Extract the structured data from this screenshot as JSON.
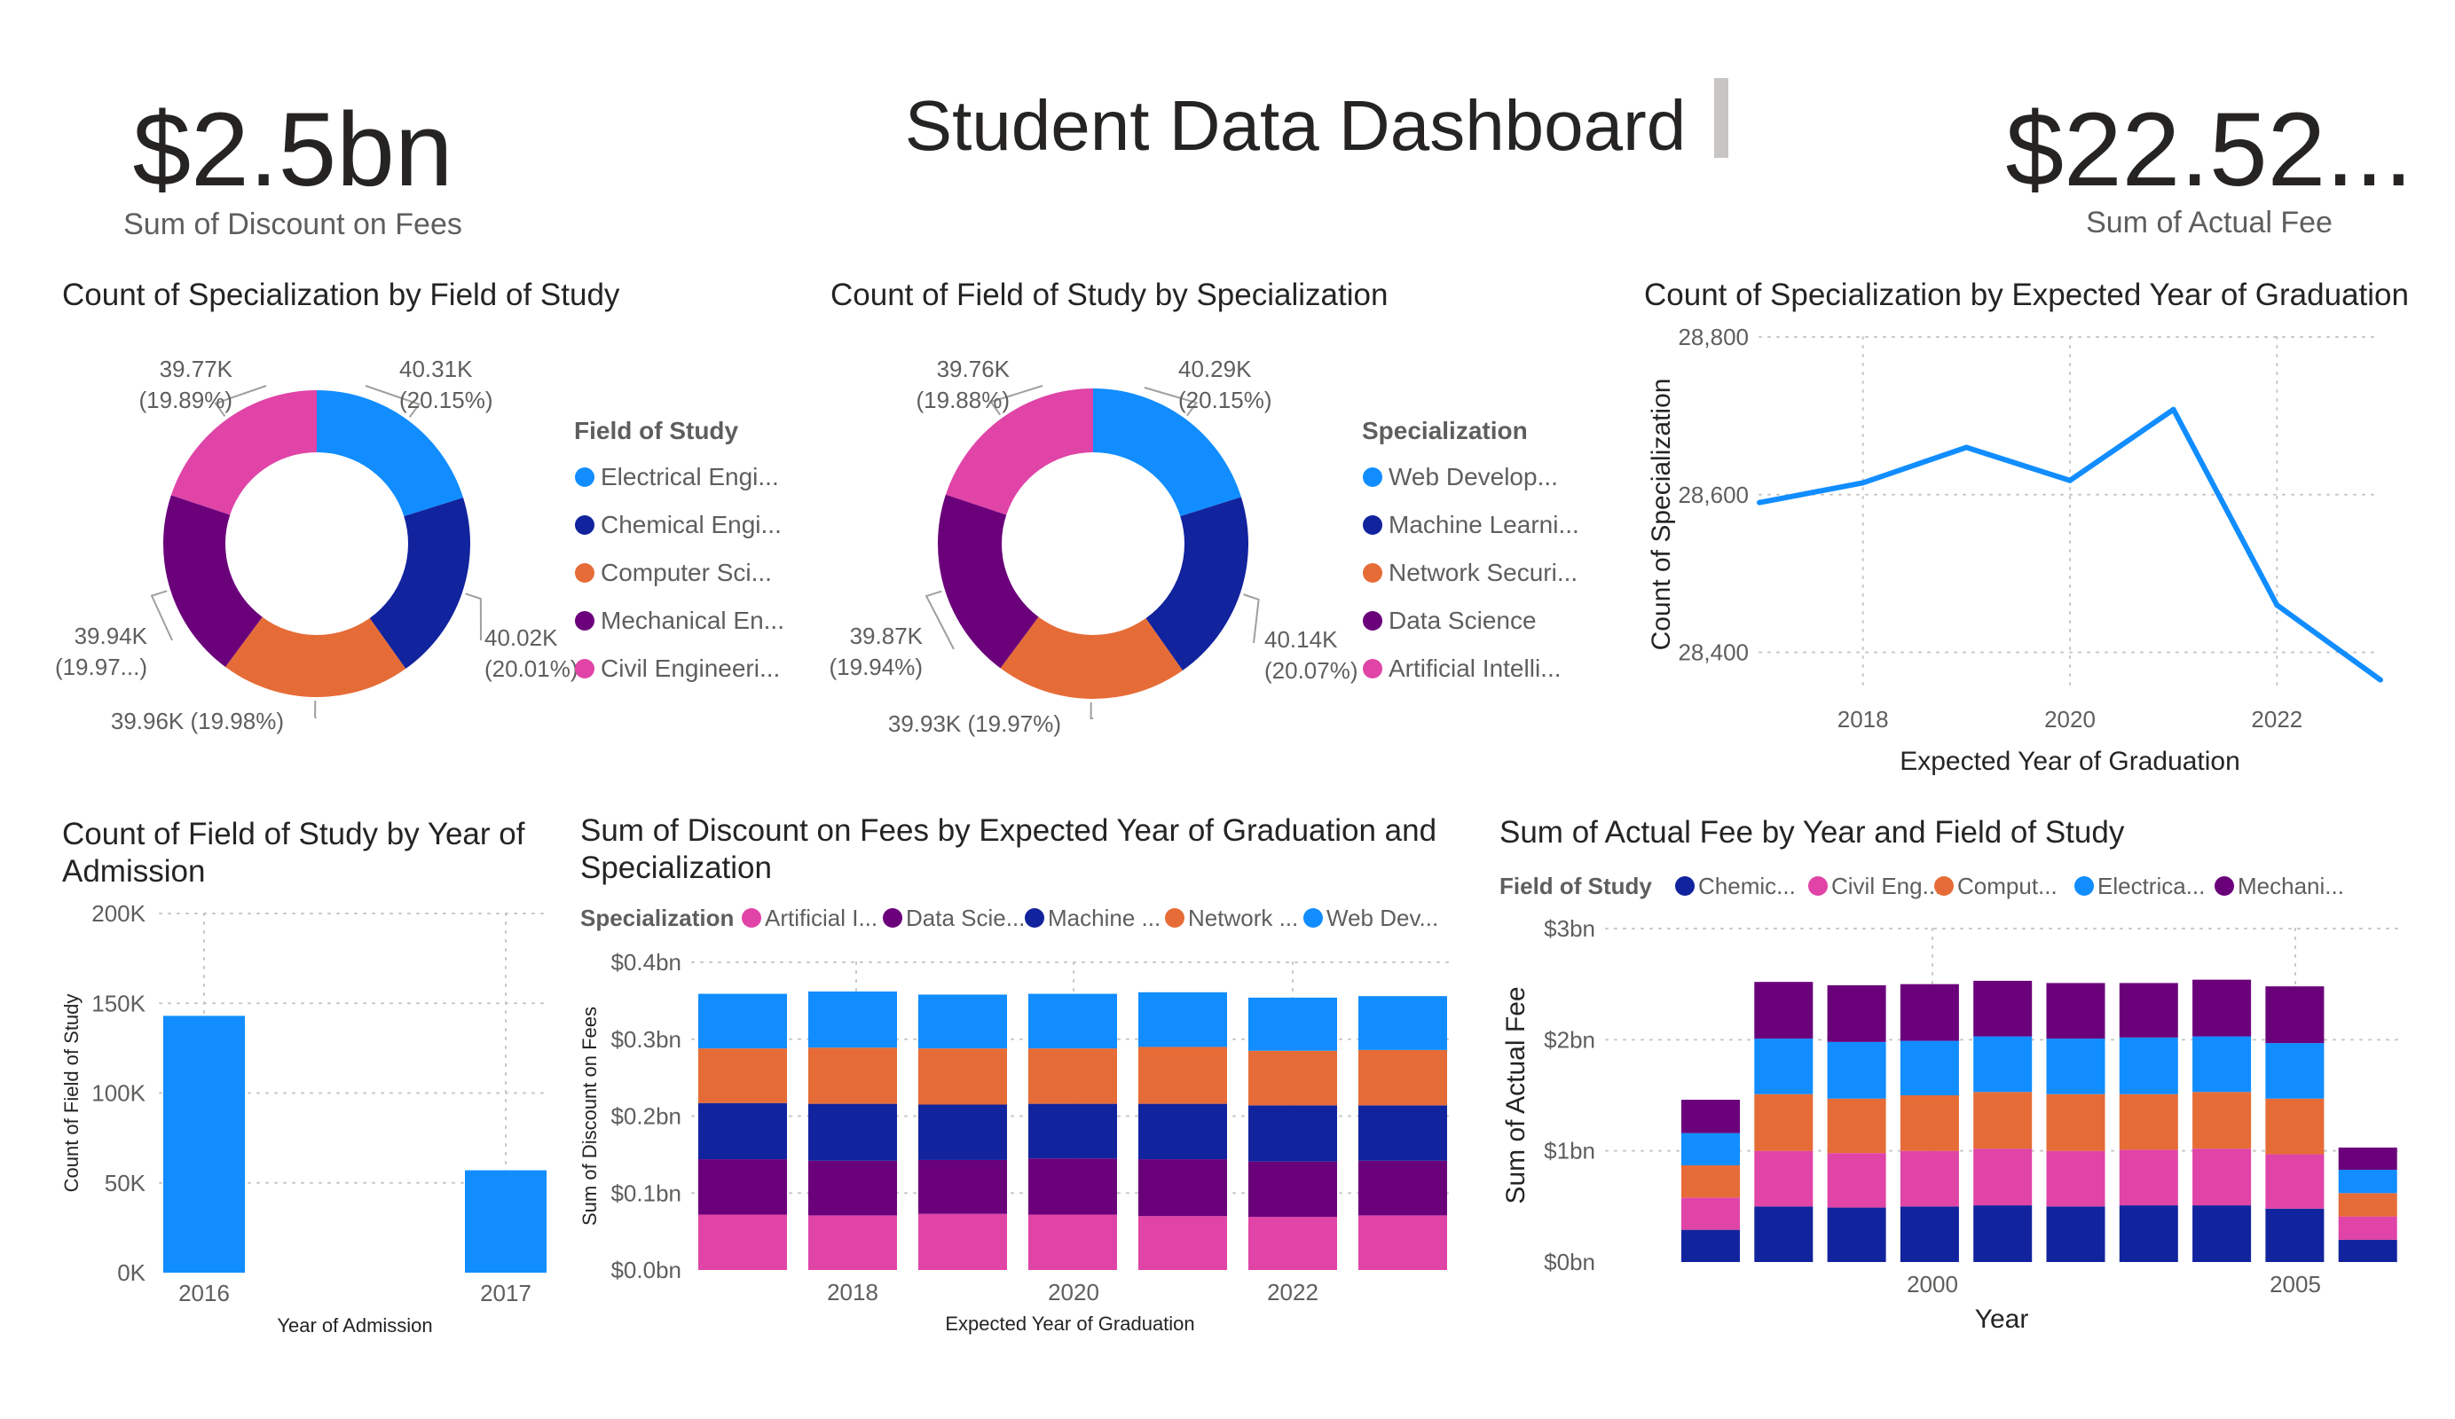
{
  "dashboard": {
    "title": "Student Data Dashboard",
    "kpi_left": {
      "value": "$2.5bn",
      "label": "Sum of Discount on Fees"
    },
    "kpi_right": {
      "value": "$22.52...",
      "label": "Sum of Actual Fee"
    }
  },
  "colors": {
    "blue_light": "#118DFF",
    "navy": "#12239E",
    "orange": "#E66C37",
    "purple": "#6B007B",
    "pink": "#E044A7",
    "text_dark": "#252423",
    "text_mid": "#605E5C",
    "grid": "#C8C6C4"
  },
  "charts": {
    "donut1": {
      "title": "Count of Specialization by Field of Study",
      "legend_title": "Field of Study",
      "legend": [
        "Electrical Engi...",
        "Chemical Engi...",
        "Computer Sci...",
        "Mechanical En...",
        "Civil Engineeri..."
      ],
      "labels": [
        {
          "value": "40.31K",
          "pct": "(20.15%)"
        },
        {
          "value": "40.02K",
          "pct": "(20.01%)"
        },
        {
          "value": "39.96K (19.98%)",
          "pct": ""
        },
        {
          "value": "39.94K",
          "pct": "(19.97...)"
        },
        {
          "value": "39.77K",
          "pct": "(19.89%)"
        }
      ]
    },
    "donut2": {
      "title": "Count of Field of Study by Specialization",
      "legend_title": "Specialization",
      "legend": [
        "Web Develop...",
        "Machine Learni...",
        "Network Securi...",
        "Data Science",
        "Artificial Intelli..."
      ],
      "labels": [
        {
          "value": "40.29K",
          "pct": "(20.15%)"
        },
        {
          "value": "40.14K",
          "pct": "(20.07%)"
        },
        {
          "value": "39.93K (19.97%)",
          "pct": ""
        },
        {
          "value": "39.87K",
          "pct": "(19.94%)"
        },
        {
          "value": "39.76K",
          "pct": "(19.88%)"
        }
      ]
    },
    "line": {
      "title": "Count of Specialization by Expected Year of Graduation",
      "xlabel": "Expected Year of Graduation",
      "ylabel": "Count of Specialization",
      "yticks": [
        "28,800",
        "28,600",
        "28,400"
      ],
      "xticks": [
        "2018",
        "2020",
        "2022"
      ]
    },
    "bar": {
      "title": "Count of Field of Study by Year of Admission",
      "xlabel": "Year of Admission",
      "ylabel": "Count of Field of Study",
      "yticks": [
        "200K",
        "150K",
        "100K",
        "50K",
        "0K"
      ],
      "xticks": [
        "2016",
        "2017"
      ]
    },
    "stack1": {
      "title": "Sum of Discount on Fees by Expected Year of Graduation and Specialization",
      "legend_title": "Specialization",
      "legend": [
        "Artificial I...",
        "Data Scie...",
        "Machine ...",
        "Network ...",
        "Web Dev..."
      ],
      "xlabel": "Expected Year of Graduation",
      "ylabel": "Sum of Discount on Fees",
      "yticks": [
        "$0.4bn",
        "$0.3bn",
        "$0.2bn",
        "$0.1bn",
        "$0.0bn"
      ],
      "xticks": [
        "2018",
        "2020",
        "2022"
      ]
    },
    "stack2": {
      "title": "Sum of Actual Fee by Year and Field of Study",
      "legend_title": "Field of Study",
      "legend": [
        "Chemic...",
        "Civil Eng...",
        "Comput...",
        "Electrica...",
        "Mechani..."
      ],
      "xlabel": "Year",
      "ylabel": "Sum of Actual Fee",
      "yticks": [
        "$3bn",
        "$2bn",
        "$1bn",
        "$0bn"
      ],
      "xticks": [
        "2000",
        "2005"
      ]
    }
  },
  "chart_data": [
    {
      "type": "pie",
      "title": "Count of Specialization by Field of Study",
      "categories": [
        "Electrical Engi...",
        "Chemical Engi...",
        "Computer Sci...",
        "Mechanical En...",
        "Civil Engineeri..."
      ],
      "values": [
        40310,
        40020,
        39960,
        39940,
        39770
      ],
      "percent": [
        20.15,
        20.01,
        19.98,
        19.97,
        19.89
      ],
      "colors": [
        "#118DFF",
        "#12239E",
        "#E66C37",
        "#6B007B",
        "#E044A7"
      ],
      "legend": "right"
    },
    {
      "type": "pie",
      "title": "Count of Field of Study by Specialization",
      "categories": [
        "Web Develop...",
        "Machine Learni...",
        "Network Securi...",
        "Data Science",
        "Artificial Intelli..."
      ],
      "values": [
        40290,
        40140,
        39930,
        39870,
        39760
      ],
      "percent": [
        20.15,
        20.07,
        19.97,
        19.94,
        19.88
      ],
      "colors": [
        "#118DFF",
        "#12239E",
        "#E66C37",
        "#6B007B",
        "#E044A7"
      ],
      "legend": "right"
    },
    {
      "type": "line",
      "title": "Count of Specialization by Expected Year of Graduation",
      "xlabel": "Expected Year of Graduation",
      "ylabel": "Count of Specialization",
      "x": [
        2017,
        2018,
        2019,
        2020,
        2021,
        2022,
        2023
      ],
      "values": [
        28590,
        28615,
        28660,
        28618,
        28708,
        28460,
        28365
      ],
      "ylim": [
        28350,
        28800
      ],
      "xlim": [
        2017,
        2023
      ],
      "grid": true
    },
    {
      "type": "bar",
      "title": "Count of Field of Study by Year of Admission",
      "xlabel": "Year of Admission",
      "ylabel": "Count of Field of Study",
      "categories": [
        "2016",
        "2017"
      ],
      "values": [
        143000,
        57000
      ],
      "ylim": [
        0,
        200000
      ],
      "grid": true
    },
    {
      "type": "bar",
      "stacked": true,
      "title": "Sum of Discount on Fees by Expected Year of Graduation and Specialization",
      "xlabel": "Expected Year of Graduation",
      "ylabel": "Sum of Discount on Fees",
      "categories": [
        "2017",
        "2018",
        "2019",
        "2020",
        "2021",
        "2022",
        "2023"
      ],
      "series": [
        {
          "name": "Artificial I...",
          "values": [
            0.072,
            0.071,
            0.073,
            0.072,
            0.07,
            0.069,
            0.071
          ]
        },
        {
          "name": "Data Scie...",
          "values": [
            0.072,
            0.071,
            0.07,
            0.073,
            0.074,
            0.072,
            0.071
          ]
        },
        {
          "name": "Machine ...",
          "values": [
            0.073,
            0.074,
            0.072,
            0.071,
            0.072,
            0.073,
            0.072
          ]
        },
        {
          "name": "Network ...",
          "values": [
            0.071,
            0.073,
            0.073,
            0.072,
            0.074,
            0.071,
            0.072
          ]
        },
        {
          "name": "Web Dev...",
          "values": [
            0.071,
            0.073,
            0.07,
            0.071,
            0.071,
            0.069,
            0.07
          ]
        }
      ],
      "ylim": [
        0,
        0.4
      ],
      "legend": "top-left",
      "grid": true
    },
    {
      "type": "bar",
      "stacked": true,
      "title": "Sum of Actual Fee by Year and Field of Study",
      "xlabel": "Year",
      "ylabel": "Sum of Actual Fee",
      "categories": [
        "1998",
        "1999",
        "2000",
        "2001",
        "2002",
        "2003",
        "2004",
        "2005",
        "2006",
        "2007"
      ],
      "series": [
        {
          "name": "Chemic...",
          "values": [
            0.29,
            0.5,
            0.49,
            0.5,
            0.51,
            0.5,
            0.51,
            0.51,
            0.48,
            0.2
          ]
        },
        {
          "name": "Civil Eng...",
          "values": [
            0.29,
            0.5,
            0.49,
            0.5,
            0.51,
            0.5,
            0.5,
            0.51,
            0.49,
            0.21
          ]
        },
        {
          "name": "Comput...",
          "values": [
            0.29,
            0.51,
            0.49,
            0.5,
            0.51,
            0.51,
            0.5,
            0.51,
            0.5,
            0.21
          ]
        },
        {
          "name": "Electrica...",
          "values": [
            0.29,
            0.5,
            0.51,
            0.49,
            0.5,
            0.5,
            0.51,
            0.5,
            0.5,
            0.21
          ]
        },
        {
          "name": "Mechani...",
          "values": [
            0.3,
            0.51,
            0.51,
            0.51,
            0.5,
            0.5,
            0.49,
            0.51,
            0.51,
            0.2
          ]
        }
      ],
      "xticks_shown": [
        "2000",
        "2005"
      ],
      "ylim": [
        0,
        3
      ],
      "legend": "top-left",
      "grid": true
    }
  ]
}
